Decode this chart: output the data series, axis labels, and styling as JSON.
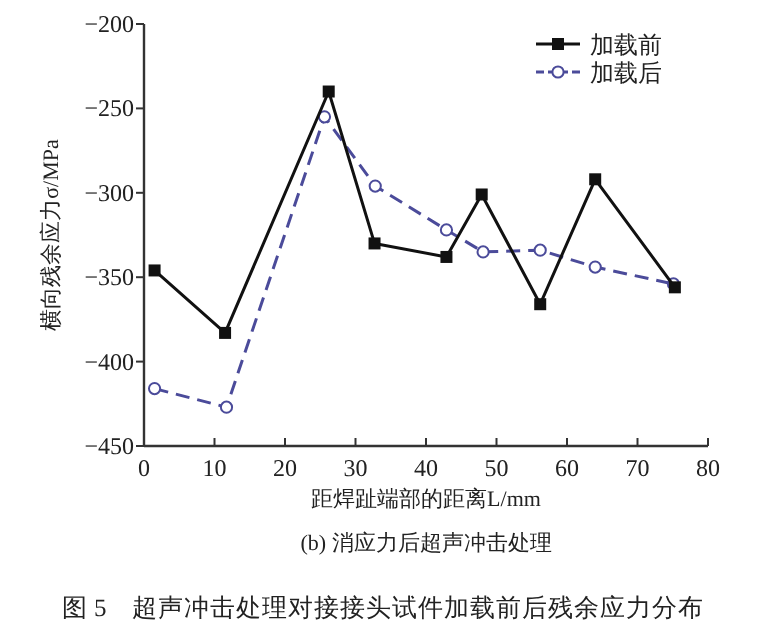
{
  "chart_data": {
    "type": "line",
    "title": "(b) 消应力后超声冲击处理",
    "xlabel": "距焊趾端部的距离L/mm",
    "ylabel": "横向残余应力σ/MPa",
    "annotations": [
      "图 5　超声冲击处理对接接头试件加载前后残余应力分布"
    ],
    "xlim": [
      0,
      80
    ],
    "xticks": [
      0,
      10,
      20,
      30,
      40,
      50,
      60,
      70,
      80
    ],
    "ylim": [
      -450,
      -200
    ],
    "yticks": [
      -450,
      -400,
      -350,
      -300,
      -250,
      -200
    ],
    "grid": false,
    "legend": "top right",
    "series": [
      {
        "name": "加载前",
        "color": "#111111",
        "marker": "square",
        "line_style": "solid",
        "x": [
          1.5,
          11.5,
          26.2,
          32.7,
          42.9,
          47.9,
          56.2,
          64.0,
          75.3
        ],
        "values": [
          -346,
          -383,
          -240,
          -330,
          -338,
          -301,
          -366,
          -292,
          -356
        ]
      },
      {
        "name": "加载后",
        "color": "#4b4b9a",
        "marker": "circle",
        "line_style": "dashed",
        "x": [
          1.5,
          11.7,
          25.6,
          32.8,
          42.9,
          48.1,
          56.2,
          64.0,
          75.1
        ],
        "values": [
          -416,
          -427,
          -255,
          -296,
          -322,
          -335,
          -334,
          -344,
          -354
        ]
      }
    ]
  }
}
